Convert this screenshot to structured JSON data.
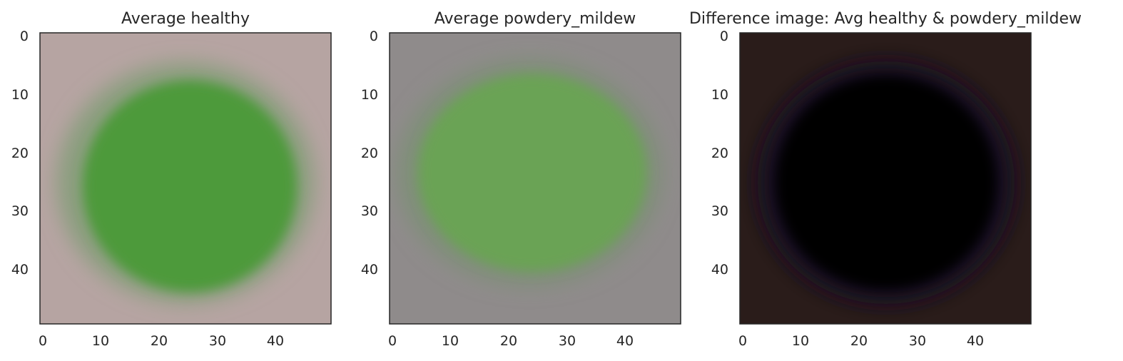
{
  "panels": [
    {
      "title": "Average healthy",
      "x_ticks": [
        0,
        10,
        20,
        30,
        40
      ],
      "y_ticks": [
        0,
        10,
        20,
        30,
        40
      ],
      "xlim": [
        -0.5,
        49.5
      ],
      "ylim": [
        49.5,
        -0.5
      ],
      "colors": {
        "background": "#b6a4a2",
        "leaf": "#4e9a3a",
        "edge": "#8a9e7e"
      }
    },
    {
      "title": "Average powdery_mildew",
      "x_ticks": [
        0,
        10,
        20,
        30,
        40
      ],
      "y_ticks": [
        0,
        10,
        20,
        30,
        40
      ],
      "xlim": [
        -0.5,
        49.5
      ],
      "ylim": [
        49.5,
        -0.5
      ],
      "colors": {
        "background": "#8f8b8b",
        "leaf": "#6aa355",
        "edge": "#7f8f78"
      }
    },
    {
      "title": "Difference image: Avg healthy & powdery_mildew",
      "x_ticks": [
        0,
        10,
        20,
        30,
        40
      ],
      "y_ticks": [
        0,
        10,
        20,
        30,
        40
      ],
      "xlim": [
        -0.5,
        49.5
      ],
      "ylim": [
        49.5,
        -0.5
      ],
      "colors": {
        "background": "#2a1c1a",
        "leaf": "#020003",
        "edge": "#171020"
      }
    }
  ]
}
